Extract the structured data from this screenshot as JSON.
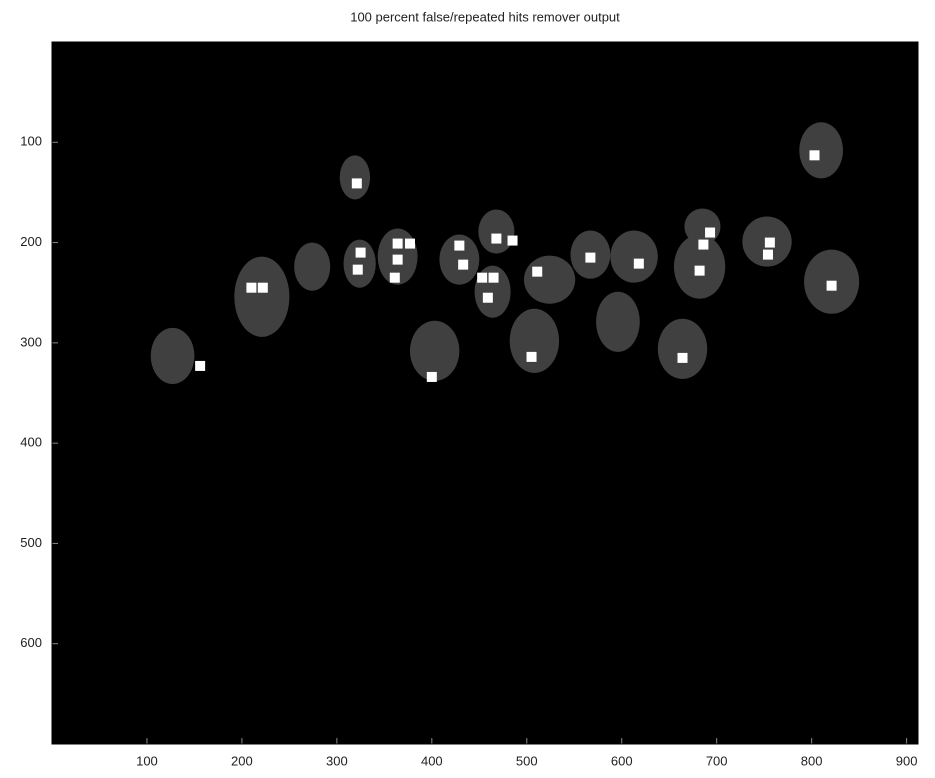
{
  "chart_data": {
    "type": "image",
    "title": "100 percent false/repeated hits remover output",
    "xlim": [
      0,
      912
    ],
    "ylim": [
      0,
      700
    ],
    "y_reversed": true,
    "xticks": [
      100,
      200,
      300,
      400,
      500,
      600,
      700,
      800,
      900
    ],
    "yticks": [
      100,
      200,
      300,
      400,
      500,
      600
    ],
    "background_color": "#000000",
    "regions": {
      "color": "#404040",
      "x": [
        127,
        221,
        274,
        319,
        324,
        364,
        403,
        429,
        468,
        464,
        508,
        524,
        567,
        596,
        613,
        664,
        685,
        682,
        753,
        810,
        821
      ],
      "y": [
        313,
        254,
        224,
        135,
        221,
        214,
        308,
        217,
        189,
        249,
        298,
        237,
        212,
        279,
        214,
        306,
        184,
        224,
        199,
        108,
        239
      ],
      "rx": [
        23,
        29,
        19,
        16,
        17,
        21,
        26,
        21,
        19,
        19,
        26,
        27,
        21,
        23,
        25,
        26,
        19,
        27,
        26,
        23,
        29
      ],
      "ry": [
        28,
        40,
        24,
        22,
        24,
        28,
        30,
        25,
        22,
        26,
        32,
        24,
        24,
        30,
        26,
        30,
        18,
        32,
        25,
        28,
        32
      ]
    },
    "hits": {
      "color": "#ffffff",
      "x": [
        156,
        210,
        222,
        321,
        325,
        322,
        364,
        364,
        361,
        377,
        429,
        433,
        453,
        465,
        459,
        468,
        485,
        505,
        511,
        567,
        618,
        686,
        682,
        693,
        664,
        756,
        754,
        803,
        821,
        400
      ],
      "y": [
        323,
        245,
        245,
        141,
        210,
        227,
        201,
        217,
        235,
        201,
        203,
        222,
        235,
        235,
        255,
        196,
        198,
        314,
        229,
        215,
        221,
        202,
        228,
        190,
        315,
        200,
        212,
        113,
        243,
        334
      ]
    }
  }
}
